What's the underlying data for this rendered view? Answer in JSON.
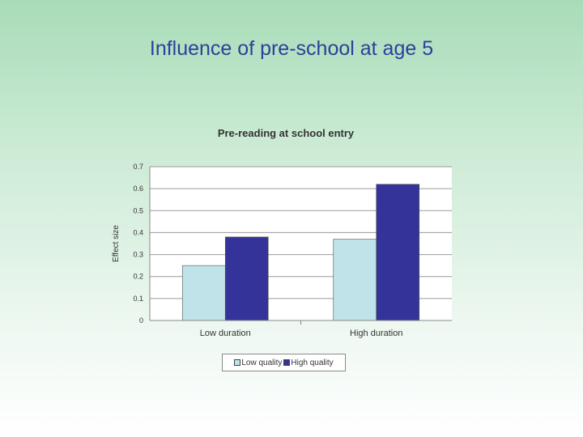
{
  "slide": {
    "title": "Influence of pre-school at age 5"
  },
  "chart_data": {
    "type": "bar",
    "title": "Pre-reading at school entry",
    "xlabel": "",
    "ylabel": "Effect size",
    "categories": [
      "Low duration",
      "High duration"
    ],
    "series": [
      {
        "name": "Low quality",
        "values": [
          0.25,
          0.37
        ],
        "color": "#bfe3e8"
      },
      {
        "name": "High quality",
        "values": [
          0.38,
          0.62
        ],
        "color": "#333399"
      }
    ],
    "ylim": [
      0,
      0.7
    ],
    "yticks": [
      "0",
      "0.1",
      "0.2",
      "0.3",
      "0.4",
      "0.5",
      "0.6",
      "0.7"
    ],
    "grid": true,
    "legend_position": "bottom"
  }
}
